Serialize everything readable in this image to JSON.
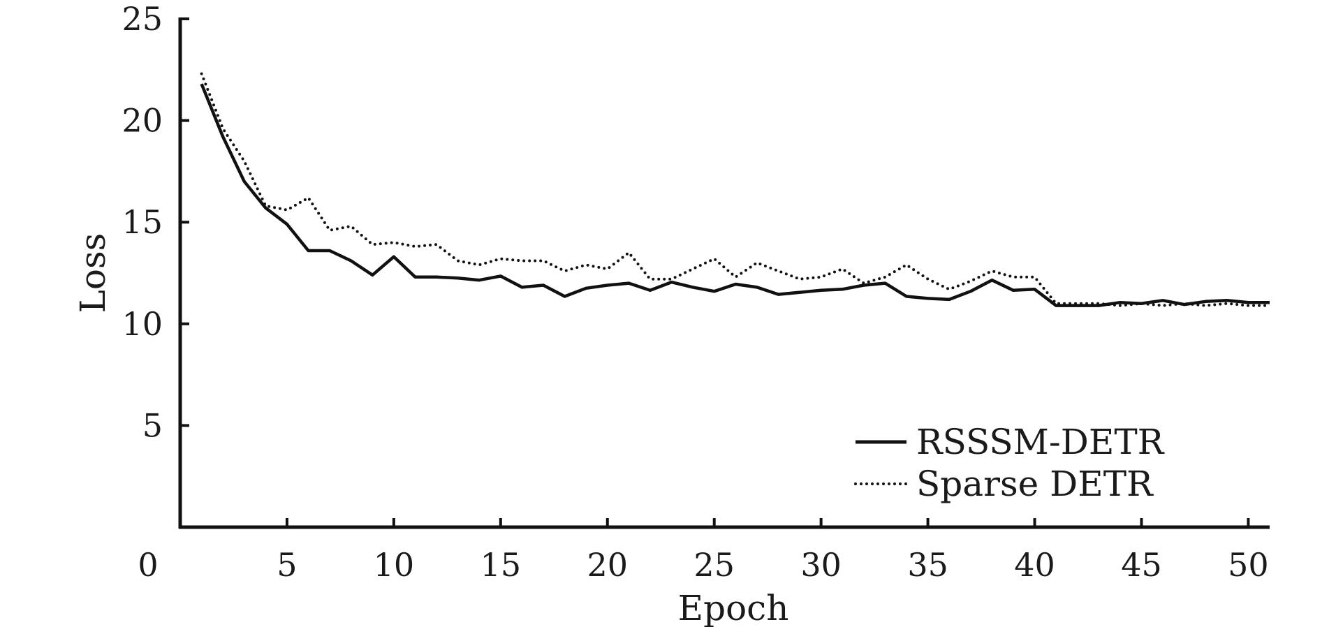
{
  "chart_data": {
    "type": "line",
    "title": "",
    "xlabel": "Epoch",
    "ylabel": "Loss",
    "xlim": [
      0,
      51
    ],
    "ylim": [
      0,
      25
    ],
    "origin_label": "0",
    "xticks": [
      5,
      10,
      15,
      20,
      25,
      30,
      35,
      40,
      45,
      50
    ],
    "yticks": [
      5,
      10,
      15,
      20,
      25
    ],
    "grid": false,
    "legend_position": "bottom-right",
    "series": [
      {
        "name": "RSSSM-DETR",
        "style": "solid",
        "color": "#111111",
        "x": [
          1,
          2,
          3,
          4,
          5,
          6,
          7,
          8,
          9,
          10,
          11,
          12,
          13,
          14,
          15,
          16,
          17,
          18,
          19,
          20,
          21,
          22,
          23,
          24,
          25,
          26,
          27,
          28,
          29,
          30,
          31,
          32,
          33,
          34,
          35,
          36,
          37,
          38,
          39,
          40,
          41,
          42,
          43,
          44,
          45,
          46,
          47,
          48,
          49,
          50,
          51
        ],
        "y": [
          21.8,
          19.2,
          17.0,
          15.7,
          14.9,
          13.6,
          13.6,
          13.1,
          12.4,
          13.3,
          12.3,
          12.3,
          12.25,
          12.15,
          12.35,
          11.8,
          11.9,
          11.35,
          11.75,
          11.9,
          12.0,
          11.65,
          12.05,
          11.8,
          11.6,
          11.95,
          11.8,
          11.45,
          11.55,
          11.65,
          11.7,
          11.9,
          12.0,
          11.35,
          11.25,
          11.2,
          11.6,
          12.15,
          11.65,
          11.7,
          10.9,
          10.9,
          10.9,
          11.05,
          11.0,
          11.15,
          10.95,
          11.1,
          11.15,
          11.05,
          11.05
        ]
      },
      {
        "name": "Sparse DETR",
        "style": "dotted",
        "color": "#111111",
        "x": [
          1,
          2,
          3,
          4,
          5,
          6,
          7,
          8,
          9,
          10,
          11,
          12,
          13,
          14,
          15,
          16,
          17,
          18,
          19,
          20,
          21,
          22,
          23,
          24,
          25,
          26,
          27,
          28,
          29,
          30,
          31,
          32,
          33,
          34,
          35,
          36,
          37,
          38,
          39,
          40,
          41,
          42,
          43,
          44,
          45,
          46,
          47,
          48,
          49,
          50,
          51
        ],
        "y": [
          22.3,
          19.6,
          18.0,
          15.8,
          15.6,
          16.2,
          14.6,
          14.8,
          13.9,
          14.0,
          13.8,
          13.9,
          13.1,
          12.9,
          13.2,
          13.1,
          13.1,
          12.6,
          12.9,
          12.7,
          13.5,
          12.2,
          12.2,
          12.7,
          13.2,
          12.3,
          13.0,
          12.6,
          12.2,
          12.3,
          12.7,
          12.0,
          12.3,
          12.9,
          12.2,
          11.7,
          12.1,
          12.6,
          12.3,
          12.3,
          11.0,
          11.0,
          11.0,
          10.9,
          11.0,
          10.9,
          11.0,
          10.9,
          11.0,
          10.9,
          10.9
        ]
      }
    ]
  }
}
